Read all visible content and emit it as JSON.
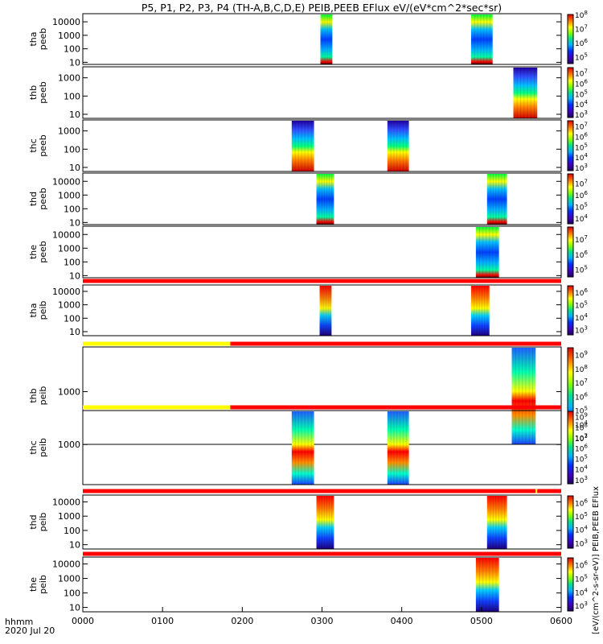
{
  "chart_data": {
    "type": "heatmap",
    "title": "P5, P1, P2, P3, P4 (TH-A,B,C,D,E) PEIB,PEEB EFlux eV/(eV*cm^2*sec*sr)",
    "time_label": "hhmm",
    "date_label": "2020 Jul 20",
    "x_ticks": [
      "0000",
      "0100",
      "0200",
      "0300",
      "0400",
      "0500",
      "0600"
    ],
    "x_range_hours": [
      0,
      6
    ],
    "colorbar_label": "[eV/(cm^2-s-sr-eV)] PEIB,PEEB EFlux",
    "colors": {
      "status_red": "#ff0000",
      "status_yellow": "#ffff00",
      "frame": "#000000",
      "background": "#ffffff"
    },
    "panels": [
      {
        "id": "tha_peeb",
        "label_1": "tha",
        "label_2": "peeb",
        "y_scale": "log",
        "y_range": [
          7,
          40000
        ],
        "y_ticks": [
          10,
          100,
          1000,
          10000
        ],
        "y_tick_labels": [
          "10",
          "100",
          "1000",
          "10000"
        ],
        "bursts": [
          {
            "start": 2.98,
            "end": 3.13,
            "kind": "electron_wide"
          },
          {
            "start": 4.87,
            "end": 5.14,
            "kind": "electron_wide"
          }
        ],
        "cbar_ticks": [
          5,
          6,
          7,
          8
        ],
        "cbar_range": [
          4.5,
          8
        ]
      },
      {
        "id": "thb_peeb",
        "label_1": "thb",
        "label_2": "peeb",
        "y_scale": "log",
        "y_range": [
          6,
          4000
        ],
        "y_ticks": [
          10,
          100,
          1000
        ],
        "y_tick_labels": [
          "10",
          "100",
          "1000"
        ],
        "bursts": [
          {
            "start": 5.4,
            "end": 5.7,
            "kind": "electron_burst"
          }
        ],
        "cbar_ticks": [
          3,
          4,
          5,
          6,
          7
        ],
        "cbar_range": [
          2.7,
          7.5
        ]
      },
      {
        "id": "thc_peeb",
        "label_1": "thc",
        "label_2": "peeb",
        "y_scale": "log",
        "y_range": [
          6,
          4000
        ],
        "y_ticks": [
          10,
          100,
          1000
        ],
        "y_tick_labels": [
          "10",
          "100",
          "1000"
        ],
        "bursts": [
          {
            "start": 2.62,
            "end": 2.9,
            "kind": "electron_burst"
          },
          {
            "start": 3.82,
            "end": 4.09,
            "kind": "electron_burst"
          }
        ],
        "cbar_ticks": [
          3,
          4,
          5,
          6,
          7
        ],
        "cbar_range": [
          2.7,
          7.5
        ]
      },
      {
        "id": "thd_peeb",
        "label_1": "thd",
        "label_2": "peeb",
        "y_scale": "log",
        "y_range": [
          7,
          40000
        ],
        "y_ticks": [
          10,
          100,
          1000,
          10000
        ],
        "y_tick_labels": [
          "10",
          "100",
          "1000",
          "10000"
        ],
        "bursts": [
          {
            "start": 2.93,
            "end": 3.15,
            "kind": "electron_wide"
          },
          {
            "start": 5.07,
            "end": 5.32,
            "kind": "electron_wide"
          }
        ],
        "cbar_ticks": [
          4,
          5,
          6,
          7
        ],
        "cbar_range": [
          3.5,
          7.8
        ]
      },
      {
        "id": "the_peeb",
        "label_1": "the",
        "label_2": "peeb",
        "y_scale": "log",
        "y_range": [
          7,
          40000
        ],
        "y_ticks": [
          10,
          100,
          1000,
          10000
        ],
        "y_tick_labels": [
          "10",
          "100",
          "1000",
          "10000"
        ],
        "bursts": [
          {
            "start": 4.93,
            "end": 5.22,
            "kind": "electron_wide"
          }
        ],
        "cbar_ticks": [
          5,
          6,
          7
        ],
        "cbar_range": [
          4.5,
          7.8
        ]
      },
      {
        "id": "tha_peib",
        "label_1": "tha",
        "label_2": "peib",
        "y_scale": "log",
        "y_range": [
          5,
          30000
        ],
        "y_ticks": [
          10,
          100,
          1000,
          10000
        ],
        "y_tick_labels": [
          "10",
          "100",
          "1000",
          "10000"
        ],
        "status": [
          {
            "start": 0,
            "end": 6,
            "color": "red"
          }
        ],
        "bursts": [
          {
            "start": 2.97,
            "end": 3.12,
            "kind": "ion_wide"
          },
          {
            "start": 4.87,
            "end": 5.1,
            "kind": "ion_wide"
          }
        ],
        "cbar_ticks": [
          3,
          4,
          5,
          6
        ],
        "cbar_range": [
          2.6,
          6.5
        ]
      },
      {
        "id": "thb_peib",
        "label_1": "thb",
        "label_2": "peib",
        "y_scale": "log",
        "y_range": [
          150,
          5000
        ],
        "y_ticks": [
          1000
        ],
        "y_tick_labels": [
          "1000"
        ],
        "status": [
          {
            "start": 0,
            "end": 1.85,
            "color": "yellow"
          },
          {
            "start": 1.85,
            "end": 6,
            "color": "red"
          }
        ],
        "bursts": [
          {
            "start": 5.38,
            "end": 5.68,
            "kind": "ion_burst"
          }
        ],
        "cbar_ticks": [
          3,
          4,
          5,
          6,
          7,
          8,
          9
        ],
        "cbar_range": [
          2.6,
          9.5
        ]
      },
      {
        "id": "thc_peib",
        "label_1": "thc",
        "label_2": "peib",
        "y_scale": "log",
        "y_range": [
          150,
          5000
        ],
        "y_ticks": [
          1000
        ],
        "y_tick_labels": [
          "1000"
        ],
        "status": [
          {
            "start": 0,
            "end": 1.85,
            "color": "yellow"
          },
          {
            "start": 1.85,
            "end": 6,
            "color": "red"
          }
        ],
        "bursts": [
          {
            "start": 2.62,
            "end": 2.9,
            "kind": "ion_burst"
          },
          {
            "start": 3.82,
            "end": 4.09,
            "kind": "ion_burst"
          }
        ],
        "cbar_ticks": [
          3,
          4,
          5,
          6,
          7,
          8,
          9
        ],
        "cbar_range": [
          2.6,
          9.5
        ]
      },
      {
        "id": "thd_peib",
        "label_1": "thd",
        "label_2": "peib",
        "y_scale": "log",
        "y_range": [
          5,
          30000
        ],
        "y_ticks": [
          10,
          100,
          1000,
          10000
        ],
        "y_tick_labels": [
          "10",
          "100",
          "1000",
          "10000"
        ],
        "status": [
          {
            "start": 0,
            "end": 5.68,
            "color": "red"
          },
          {
            "start": 5.68,
            "end": 5.7,
            "color": "yellow"
          },
          {
            "start": 5.7,
            "end": 6,
            "color": "red"
          }
        ],
        "bursts": [
          {
            "start": 2.93,
            "end": 3.15,
            "kind": "ion_wide"
          },
          {
            "start": 5.07,
            "end": 5.32,
            "kind": "ion_wide"
          }
        ],
        "cbar_ticks": [
          3,
          4,
          5,
          6
        ],
        "cbar_range": [
          2.6,
          6.5
        ]
      },
      {
        "id": "the_peib",
        "label_1": "the",
        "label_2": "peib",
        "y_scale": "log",
        "y_range": [
          5,
          30000
        ],
        "y_ticks": [
          10,
          100,
          1000,
          10000
        ],
        "y_tick_labels": [
          "10",
          "100",
          "1000",
          "10000"
        ],
        "status": [
          {
            "start": 0,
            "end": 6,
            "color": "red"
          }
        ],
        "bursts": [
          {
            "start": 4.93,
            "end": 5.22,
            "kind": "ion_wide"
          }
        ],
        "cbar_ticks": [
          3,
          4,
          5,
          6
        ],
        "cbar_range": [
          2.6,
          6.5
        ]
      }
    ]
  }
}
